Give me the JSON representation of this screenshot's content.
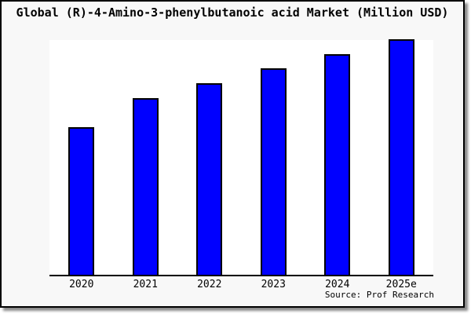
{
  "window": {
    "background": "#f8f8f8",
    "border_color": "#000000",
    "shadow_color": "#8a8a8a"
  },
  "chart_data": {
    "type": "bar",
    "title": "Global (R)-4-Amino-3-phenylbutanoic acid Market (Million USD)",
    "categories": [
      "2020",
      "2021",
      "2022",
      "2023",
      "2024",
      "2025e"
    ],
    "values": [
      62.5,
      75.0,
      81.3,
      87.7,
      93.7,
      100.0
    ],
    "value_scale": "relative bar heights, tallest bar = 100 (value axis not labeled in chart)",
    "xlabel": "",
    "ylabel": "",
    "grid": false,
    "legend": false,
    "bar_color": "#0000ff",
    "bar_border_color": "#000000",
    "plot_background": "#ffffff"
  },
  "source": {
    "label": "Source: Prof Research"
  }
}
